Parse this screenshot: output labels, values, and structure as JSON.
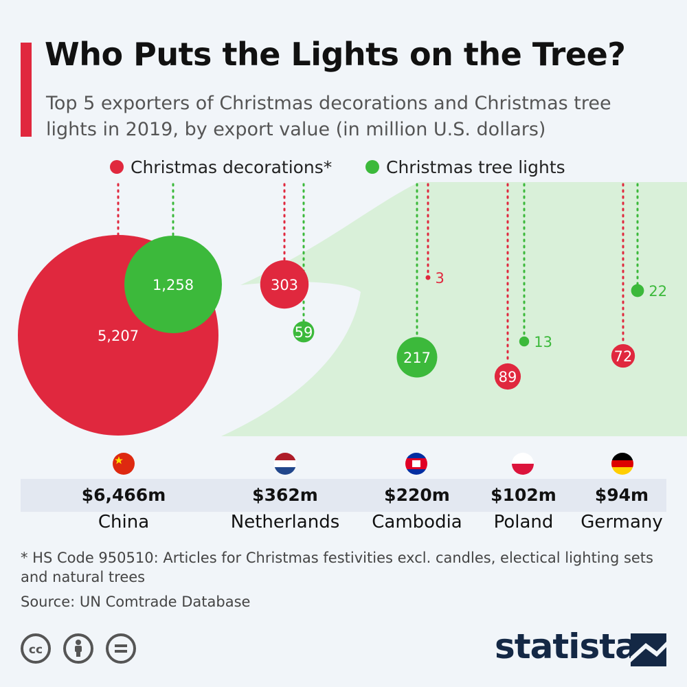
{
  "header": {
    "title": "Who Puts the Lights on the Tree?",
    "subtitle": "Top 5 exporters of Christmas decorations and Christmas tree lights in 2019, by export value (in million U.S. dollars)"
  },
  "chart_data": {
    "type": "bubble",
    "categories": [
      "China",
      "Netherlands",
      "Cambodia",
      "Poland",
      "Germany"
    ],
    "series": [
      {
        "name": "Christmas decorations*",
        "color": "#e0283e",
        "values": [
          5207,
          303,
          3,
          89,
          72
        ]
      },
      {
        "name": "Christmas tree lights",
        "color": "#3cb93b",
        "values": [
          1258,
          59,
          217,
          13,
          22
        ]
      }
    ],
    "value_labels": {
      "decorations": [
        "5,207",
        "303",
        "3",
        "89",
        "72"
      ],
      "lights": [
        "1,258",
        "59",
        "217",
        "13",
        "22"
      ]
    },
    "totals": [
      "$6,466m",
      "$362m",
      "$220m",
      "$102m",
      "$94m"
    ],
    "legend_position": "top"
  },
  "footnote": "* HS Code 950510: Articles for Christmas festivities excl. candles, electical lighting sets and natural trees",
  "source": "Source: UN Comtrade Database",
  "flags": [
    "china-flag-icon",
    "netherlands-flag-icon",
    "cambodia-flag-icon",
    "poland-flag-icon",
    "germany-flag-icon"
  ],
  "license_icons": [
    "cc-icon",
    "attribution-icon",
    "no-derivatives-icon"
  ],
  "brand": {
    "name": "statista",
    "color": "#142845"
  },
  "colors": {
    "accent": "#e0283e",
    "decorations": "#e0283e",
    "lights": "#3cb93b",
    "tree_background": "#d9f0d9"
  }
}
